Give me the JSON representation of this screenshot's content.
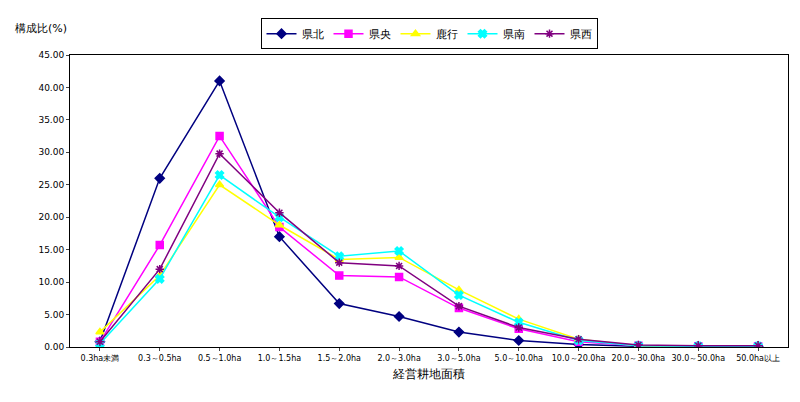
{
  "chart_data": {
    "type": "line",
    "ylabel": "構成比(%)",
    "xlabel": "経営耕地面積",
    "categories": [
      "0.3ha未満",
      "0.3～0.5ha",
      "0.5～1.0ha",
      "1.0～1.5ha",
      "1.5～2.0ha",
      "2.0～3.0ha",
      "3.0～5.0ha",
      "5.0～10.0ha",
      "10.0～20.0ha",
      "20.0～30.0ha",
      "30.0～50.0ha",
      "50.0ha以上"
    ],
    "series": [
      {
        "name": "県北",
        "color": "#000080",
        "marker": "diamond",
        "values": [
          0.8,
          26.0,
          41.0,
          17.0,
          6.7,
          4.7,
          2.3,
          1.0,
          0.4,
          0.1,
          0.1,
          0.1
        ]
      },
      {
        "name": "県央",
        "color": "#ff00ff",
        "marker": "square",
        "values": [
          0.8,
          15.7,
          32.5,
          18.5,
          11.0,
          10.8,
          6.0,
          2.8,
          0.8,
          0.2,
          0.1,
          0.1
        ]
      },
      {
        "name": "鹿行",
        "color": "#ffff00",
        "marker": "triangle-up",
        "values": [
          2.3,
          11.0,
          25.0,
          18.8,
          13.5,
          13.8,
          8.8,
          4.3,
          1.2,
          0.2,
          0.1,
          0.1
        ]
      },
      {
        "name": "県南",
        "color": "#00ffff",
        "marker": "x",
        "values": [
          0.5,
          10.5,
          26.5,
          20.0,
          14.0,
          14.8,
          8.0,
          3.8,
          1.0,
          0.2,
          0.1,
          0.1
        ]
      },
      {
        "name": "県西",
        "color": "#800080",
        "marker": "asterisk-open",
        "values": [
          0.8,
          12.0,
          29.8,
          20.7,
          13.0,
          12.5,
          6.3,
          3.0,
          1.2,
          0.3,
          0.2,
          0.2
        ]
      }
    ],
    "ylim": [
      0,
      45
    ],
    "yticks": [
      {
        "value": 0,
        "label": "0.00"
      },
      {
        "value": 5,
        "label": "5.00"
      },
      {
        "value": 10,
        "label": "10.00"
      },
      {
        "value": 15,
        "label": "15.00"
      },
      {
        "value": 20,
        "label": "20.00"
      },
      {
        "value": 25,
        "label": "25.00"
      },
      {
        "value": 30,
        "label": "30.00"
      },
      {
        "value": 35,
        "label": "35.00"
      },
      {
        "value": 40,
        "label": "40.00"
      },
      {
        "value": 45,
        "label": "45.00"
      }
    ],
    "grid": false,
    "legend": "top"
  }
}
